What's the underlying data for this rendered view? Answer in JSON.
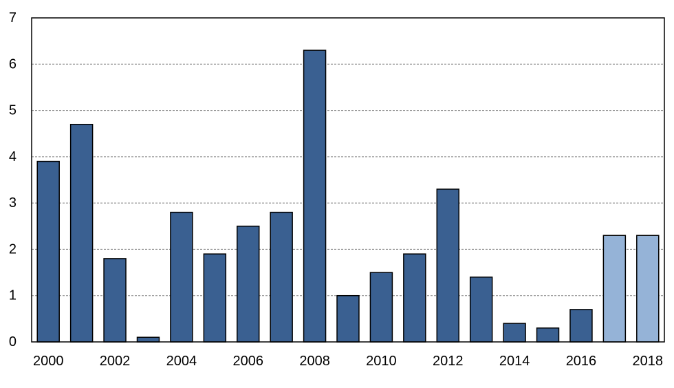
{
  "chart_data": {
    "type": "bar",
    "title": "",
    "xlabel": "",
    "ylabel": "",
    "ylim": [
      0,
      7
    ],
    "yticks": [
      0,
      1,
      2,
      3,
      4,
      5,
      6,
      7
    ],
    "grid": true,
    "legend": "none",
    "categories": [
      "2000",
      "2001",
      "2002",
      "2003",
      "2004",
      "2005",
      "2006",
      "2007",
      "2008",
      "2009",
      "2010",
      "2011",
      "2012",
      "2013",
      "2014",
      "2015",
      "2016",
      "2017",
      "2018"
    ],
    "xtick_labels": [
      "2000",
      "2002",
      "2004",
      "2006",
      "2008",
      "2010",
      "2012",
      "2014",
      "2016",
      "2018"
    ],
    "values": [
      3.9,
      4.7,
      1.8,
      0.1,
      2.8,
      1.9,
      2.5,
      2.8,
      6.3,
      1.0,
      1.5,
      1.9,
      3.3,
      1.4,
      0.4,
      0.3,
      0.7,
      2.3,
      2.3
    ],
    "colors": {
      "actual": "#3a6091",
      "projected": "#95b3d7",
      "projected_categories": [
        "2017",
        "2018"
      ],
      "bar_edge": "#000000",
      "gridline": "#808080"
    }
  }
}
